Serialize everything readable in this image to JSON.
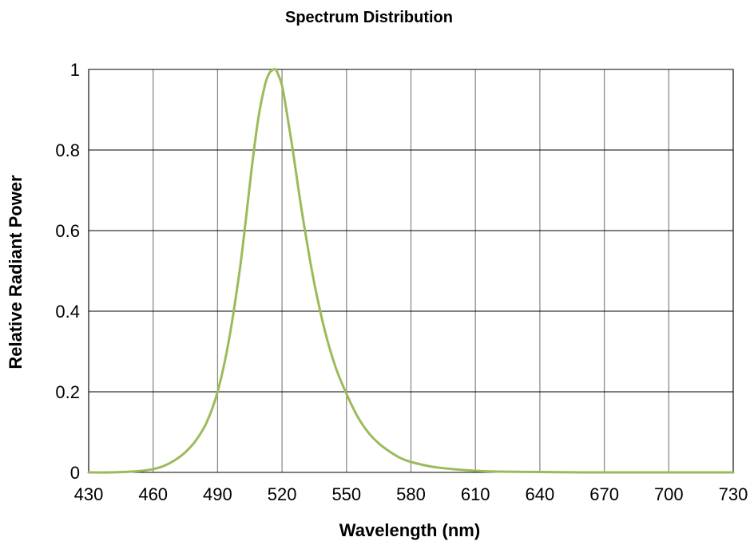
{
  "chart_data": {
    "type": "line",
    "title": "Spectrum Distribution",
    "xlabel": "Wavelength (nm)",
    "ylabel": "Relative Radiant Power",
    "xlim": [
      430,
      730
    ],
    "ylim": [
      0,
      1
    ],
    "x_ticks": [
      430,
      460,
      490,
      520,
      550,
      580,
      610,
      640,
      670,
      700,
      730
    ],
    "y_ticks": [
      0,
      0.2,
      0.4,
      0.6,
      0.8,
      1
    ],
    "y_tick_labels": [
      "0",
      "0.2",
      "0.4",
      "0.6",
      "0.8",
      "1"
    ],
    "grid": true,
    "series": [
      {
        "color": "#9bbb59",
        "x": [
          430,
          440,
          450,
          455,
          460,
          465,
          470,
          475,
          480,
          485,
          490,
          495,
          500,
          503,
          506,
          509,
          512,
          514,
          516,
          517,
          518,
          520,
          522,
          525,
          528,
          531,
          535,
          540,
          545,
          550,
          555,
          560,
          565,
          570,
          575,
          580,
          590,
          600,
          610,
          620,
          640,
          660,
          680,
          700,
          730
        ],
        "y": [
          0.0,
          0.0,
          0.002,
          0.004,
          0.008,
          0.016,
          0.03,
          0.05,
          0.08,
          0.125,
          0.2,
          0.32,
          0.49,
          0.62,
          0.76,
          0.88,
          0.96,
          0.99,
          1.0,
          1.0,
          0.99,
          0.96,
          0.9,
          0.8,
          0.69,
          0.59,
          0.47,
          0.35,
          0.26,
          0.195,
          0.14,
          0.1,
          0.072,
          0.052,
          0.036,
          0.026,
          0.014,
          0.008,
          0.004,
          0.002,
          0.001,
          0.0,
          0.0,
          0.0,
          0.0
        ]
      }
    ]
  }
}
